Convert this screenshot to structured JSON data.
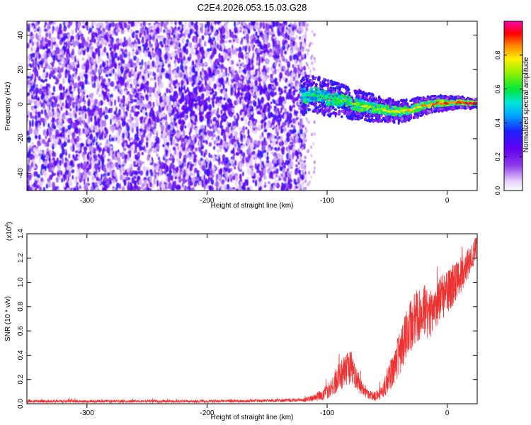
{
  "title": "C2E4.2026.053.15.03.G28",
  "chart_data": [
    {
      "type": "heatmap",
      "xlabel": "Height of straight line (km)",
      "ylabel": "Frequency (Hz)",
      "xlim": [
        -350,
        25
      ],
      "ylim": [
        -50,
        48
      ],
      "x_ticks": [
        -300,
        -200,
        -100,
        0
      ],
      "y_ticks": [
        -40,
        -20,
        0,
        20,
        40
      ],
      "noise_region_x": [
        -350,
        -122
      ],
      "signal_track": {
        "x": [
          -122,
          -110,
          -100,
          -90,
          -80,
          -70,
          -60,
          -50,
          -40,
          -30,
          -20,
          -10,
          0,
          10,
          20,
          25
        ],
        "freq": [
          4.5,
          5.5,
          3.5,
          2.5,
          0.5,
          -1,
          -2.5,
          -3.5,
          -4.5,
          -3,
          -1,
          0.5,
          0.5,
          1,
          0.5,
          0.5
        ]
      },
      "colorbar": {
        "label": "Normalized spectral amplitude",
        "range": [
          0.0,
          1.0
        ],
        "ticks": [
          "0.0",
          "0.2",
          "0.4",
          "0.6",
          "0.8"
        ]
      }
    },
    {
      "type": "line",
      "xlabel": "Height of straight line (km)",
      "ylabel": "SNR (10 * v/v)",
      "scale_label": "(x10",
      "scale_exp": "4",
      "xlim": [
        -350,
        25
      ],
      "ylim": [
        0,
        1.4
      ],
      "x_ticks": [
        -300,
        -200,
        -100,
        0
      ],
      "y_ticks": [
        "0.0",
        "0.2",
        "0.4",
        "0.6",
        "0.8",
        "1.0",
        "1.2",
        "1.4"
      ],
      "series": [
        {
          "name": "SNR",
          "color": "#ee3333",
          "x": [
            -350,
            -300,
            -250,
            -200,
            -150,
            -120,
            -110,
            -100,
            -95,
            -90,
            -85,
            -80,
            -75,
            -70,
            -65,
            -60,
            -55,
            -50,
            -45,
            -40,
            -35,
            -30,
            -25,
            -20,
            -15,
            -10,
            -5,
            0,
            5,
            10,
            15,
            20,
            25
          ],
          "values": [
            0.02,
            0.02,
            0.02,
            0.02,
            0.025,
            0.03,
            0.05,
            0.1,
            0.16,
            0.22,
            0.28,
            0.3,
            0.2,
            0.12,
            0.07,
            0.06,
            0.08,
            0.18,
            0.28,
            0.4,
            0.55,
            0.65,
            0.72,
            0.78,
            0.72,
            0.8,
            0.88,
            0.92,
            0.98,
            1.05,
            1.1,
            1.2,
            1.28
          ],
          "amplitude": [
            0.012,
            0.012,
            0.012,
            0.012,
            0.012,
            0.015,
            0.03,
            0.06,
            0.09,
            0.12,
            0.14,
            0.14,
            0.1,
            0.06,
            0.04,
            0.04,
            0.06,
            0.1,
            0.14,
            0.18,
            0.2,
            0.22,
            0.22,
            0.22,
            0.2,
            0.2,
            0.2,
            0.18,
            0.18,
            0.16,
            0.14,
            0.12,
            0.1
          ]
        }
      ]
    }
  ]
}
